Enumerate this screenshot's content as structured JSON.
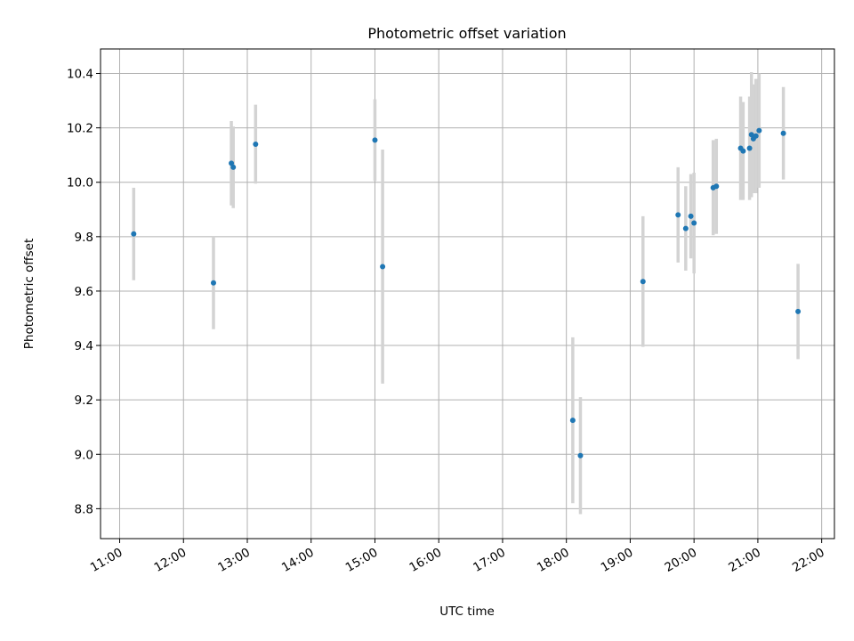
{
  "chart_data": {
    "type": "scatter",
    "title": "Photometric offset variation",
    "xlabel": "UTC time",
    "ylabel": "Photometric offset",
    "xlim": [
      10.7,
      22.2
    ],
    "ylim": [
      8.69,
      10.49
    ],
    "grid": true,
    "x_ticks": [
      11,
      12,
      13,
      14,
      15,
      16,
      17,
      18,
      19,
      20,
      21,
      22
    ],
    "x_tick_labels": [
      "11:00",
      "12:00",
      "13:00",
      "14:00",
      "15:00",
      "16:00",
      "17:00",
      "18:00",
      "19:00",
      "20:00",
      "21:00",
      "22:00"
    ],
    "y_ticks": [
      8.8,
      9.0,
      9.2,
      9.4,
      9.6,
      9.8,
      10.0,
      10.2,
      10.4
    ],
    "y_tick_labels": [
      "8.8",
      "9.0",
      "9.2",
      "9.4",
      "9.6",
      "9.8",
      "10.0",
      "10.2",
      "10.4"
    ],
    "colors": {
      "point": "#1f77b4",
      "errorbar": "#d3d3d3",
      "grid": "#b0b0b0"
    },
    "points": [
      {
        "x": 11.22,
        "y": 9.81,
        "yerr": 0.17
      },
      {
        "x": 12.47,
        "y": 9.63,
        "yerr": 0.17
      },
      {
        "x": 12.75,
        "y": 10.07,
        "yerr": 0.155
      },
      {
        "x": 12.78,
        "y": 10.055,
        "yerr": 0.15
      },
      {
        "x": 13.13,
        "y": 10.14,
        "yerr": 0.145
      },
      {
        "x": 15.0,
        "y": 10.155,
        "yerr": 0.15
      },
      {
        "x": 15.12,
        "y": 9.69,
        "yerr": 0.43
      },
      {
        "x": 18.1,
        "y": 9.125,
        "yerr": 0.305
      },
      {
        "x": 18.22,
        "y": 8.995,
        "yerr": 0.215
      },
      {
        "x": 19.2,
        "y": 9.635,
        "yerr": 0.24
      },
      {
        "x": 19.75,
        "y": 9.88,
        "yerr": 0.175
      },
      {
        "x": 19.87,
        "y": 9.83,
        "yerr": 0.155
      },
      {
        "x": 19.95,
        "y": 9.875,
        "yerr": 0.155
      },
      {
        "x": 20.0,
        "y": 9.85,
        "yerr": 0.185
      },
      {
        "x": 20.3,
        "y": 9.98,
        "yerr": 0.175
      },
      {
        "x": 20.35,
        "y": 9.985,
        "yerr": 0.175
      },
      {
        "x": 20.73,
        "y": 10.125,
        "yerr": 0.19
      },
      {
        "x": 20.77,
        "y": 10.115,
        "yerr": 0.18
      },
      {
        "x": 20.87,
        "y": 10.125,
        "yerr": 0.19
      },
      {
        "x": 20.9,
        "y": 10.175,
        "yerr": 0.23
      },
      {
        "x": 20.93,
        "y": 10.16,
        "yerr": 0.2
      },
      {
        "x": 20.97,
        "y": 10.17,
        "yerr": 0.21
      },
      {
        "x": 21.02,
        "y": 10.19,
        "yerr": 0.21
      },
      {
        "x": 21.4,
        "y": 10.18,
        "yerr": 0.17
      },
      {
        "x": 21.63,
        "y": 9.525,
        "yerr": 0.175
      }
    ]
  }
}
